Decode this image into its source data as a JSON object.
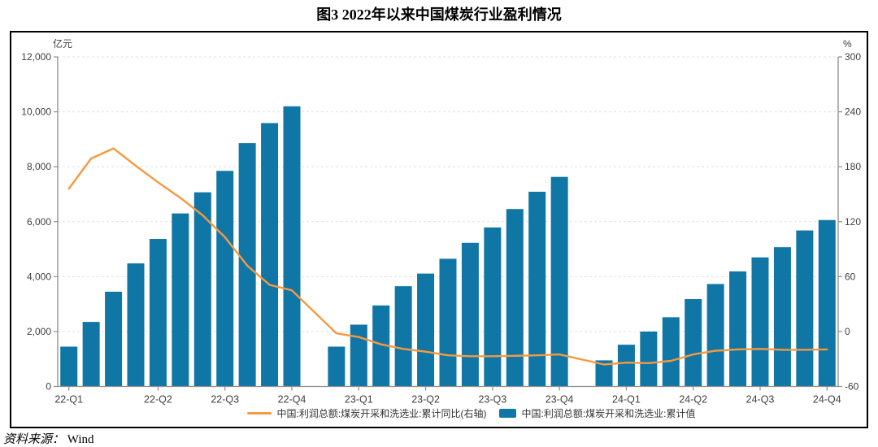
{
  "title": "图3  2022年以来中国煤炭行业盈利情况",
  "source": {
    "prefix": "资料来源：",
    "name": "Wind"
  },
  "chart_data": {
    "type": "bar+line",
    "title": "图3  2022年以来中国煤炭行业盈利情况",
    "n_slots": 35,
    "grid": "dashed-horizontal",
    "legend_position": "bottom-center",
    "colors": {
      "bar": "#0f76a6",
      "line": "#f6993f",
      "gridline": "#e0e0e0",
      "axis": "#8c8c8c"
    },
    "left_axis": {
      "unit": "亿元",
      "min": 0,
      "max": 12000,
      "ticks": [
        {
          "label": "12,000",
          "value": 12000
        },
        {
          "label": "10,000",
          "value": 10000
        },
        {
          "label": "8,000",
          "value": 8000
        },
        {
          "label": "6,000",
          "value": 6000
        },
        {
          "label": "4,000",
          "value": 4000
        },
        {
          "label": "2,000",
          "value": 2000
        },
        {
          "label": "0",
          "value": 0
        }
      ]
    },
    "right_axis": {
      "unit": "%",
      "min": -60,
      "max": 300,
      "ticks": [
        {
          "label": "300",
          "value": 300
        },
        {
          "label": "240",
          "value": 240
        },
        {
          "label": "180",
          "value": 180
        },
        {
          "label": "120",
          "value": 120
        },
        {
          "label": "60",
          "value": 60
        },
        {
          "label": "0",
          "value": 0
        },
        {
          "label": "-60",
          "value": -60
        }
      ]
    },
    "x_ticks": [
      {
        "label": "22-Q1",
        "slot": 0
      },
      {
        "label": "22-Q2",
        "slot": 4
      },
      {
        "label": "22-Q3",
        "slot": 7
      },
      {
        "label": "22-Q4",
        "slot": 10
      },
      {
        "label": "23-Q1",
        "slot": 13
      },
      {
        "label": "23-Q2",
        "slot": 16
      },
      {
        "label": "23-Q3",
        "slot": 19
      },
      {
        "label": "23-Q4",
        "slot": 22
      },
      {
        "label": "24-Q1",
        "slot": 25
      },
      {
        "label": "24-Q2",
        "slot": 28
      },
      {
        "label": "24-Q3",
        "slot": 31
      },
      {
        "label": "24-Q4",
        "slot": 34
      }
    ],
    "series": [
      {
        "name": "中国:利润总额:煤炭开采和洗选业:累计同比(右轴)",
        "type": "line",
        "axis": "right",
        "color": "#f6993f"
      },
      {
        "name": "中国:利润总额:煤炭开采和洗选业:累计值",
        "type": "bar",
        "axis": "left",
        "color": "#0f76a6"
      }
    ],
    "points": [
      {
        "month": "2022-02",
        "slot": 0,
        "bar": 1450,
        "yoy": 156
      },
      {
        "month": "2022-03",
        "slot": 1,
        "bar": 2350,
        "yoy": 189
      },
      {
        "month": "2022-04",
        "slot": 2,
        "bar": 3450,
        "yoy": 200
      },
      {
        "month": "2022-05",
        "slot": 3,
        "bar": 4480,
        "yoy": 181
      },
      {
        "month": "2022-06",
        "slot": 4,
        "bar": 5370,
        "yoy": 163
      },
      {
        "month": "2022-07",
        "slot": 5,
        "bar": 6300,
        "yoy": 146
      },
      {
        "month": "2022-08",
        "slot": 6,
        "bar": 7070,
        "yoy": 127
      },
      {
        "month": "2022-09",
        "slot": 7,
        "bar": 7850,
        "yoy": 103
      },
      {
        "month": "2022-10",
        "slot": 8,
        "bar": 8860,
        "yoy": 72
      },
      {
        "month": "2022-11",
        "slot": 9,
        "bar": 9590,
        "yoy": 51
      },
      {
        "month": "2022-12",
        "slot": 10,
        "bar": 10200,
        "yoy": 45
      },
      {
        "month": "2023-02",
        "slot": 12,
        "bar": 1450,
        "yoy": -2
      },
      {
        "month": "2023-03",
        "slot": 13,
        "bar": 2250,
        "yoy": -6
      },
      {
        "month": "2023-04",
        "slot": 14,
        "bar": 2950,
        "yoy": -14
      },
      {
        "month": "2023-05",
        "slot": 15,
        "bar": 3650,
        "yoy": -19
      },
      {
        "month": "2023-06",
        "slot": 16,
        "bar": 4110,
        "yoy": -22
      },
      {
        "month": "2023-07",
        "slot": 17,
        "bar": 4650,
        "yoy": -26
      },
      {
        "month": "2023-08",
        "slot": 18,
        "bar": 5230,
        "yoy": -27
      },
      {
        "month": "2023-09",
        "slot": 19,
        "bar": 5790,
        "yoy": -27
      },
      {
        "month": "2023-10",
        "slot": 20,
        "bar": 6460,
        "yoy": -26.5
      },
      {
        "month": "2023-11",
        "slot": 21,
        "bar": 7090,
        "yoy": -26
      },
      {
        "month": "2023-12",
        "slot": 22,
        "bar": 7630,
        "yoy": -25
      },
      {
        "month": "2024-02",
        "slot": 24,
        "bar": 950,
        "yoy": -36
      },
      {
        "month": "2024-03",
        "slot": 25,
        "bar": 1520,
        "yoy": -34
      },
      {
        "month": "2024-04",
        "slot": 26,
        "bar": 2000,
        "yoy": -34.5
      },
      {
        "month": "2024-05",
        "slot": 27,
        "bar": 2520,
        "yoy": -32
      },
      {
        "month": "2024-06",
        "slot": 28,
        "bar": 3180,
        "yoy": -25
      },
      {
        "month": "2024-07",
        "slot": 29,
        "bar": 3730,
        "yoy": -21
      },
      {
        "month": "2024-08",
        "slot": 30,
        "bar": 4190,
        "yoy": -19.5
      },
      {
        "month": "2024-09",
        "slot": 31,
        "bar": 4700,
        "yoy": -19
      },
      {
        "month": "2024-10",
        "slot": 32,
        "bar": 5070,
        "yoy": -20
      },
      {
        "month": "2024-11",
        "slot": 33,
        "bar": 5680,
        "yoy": -20
      },
      {
        "month": "2024-12",
        "slot": 34,
        "bar": 6060,
        "yoy": -19.5
      }
    ]
  }
}
